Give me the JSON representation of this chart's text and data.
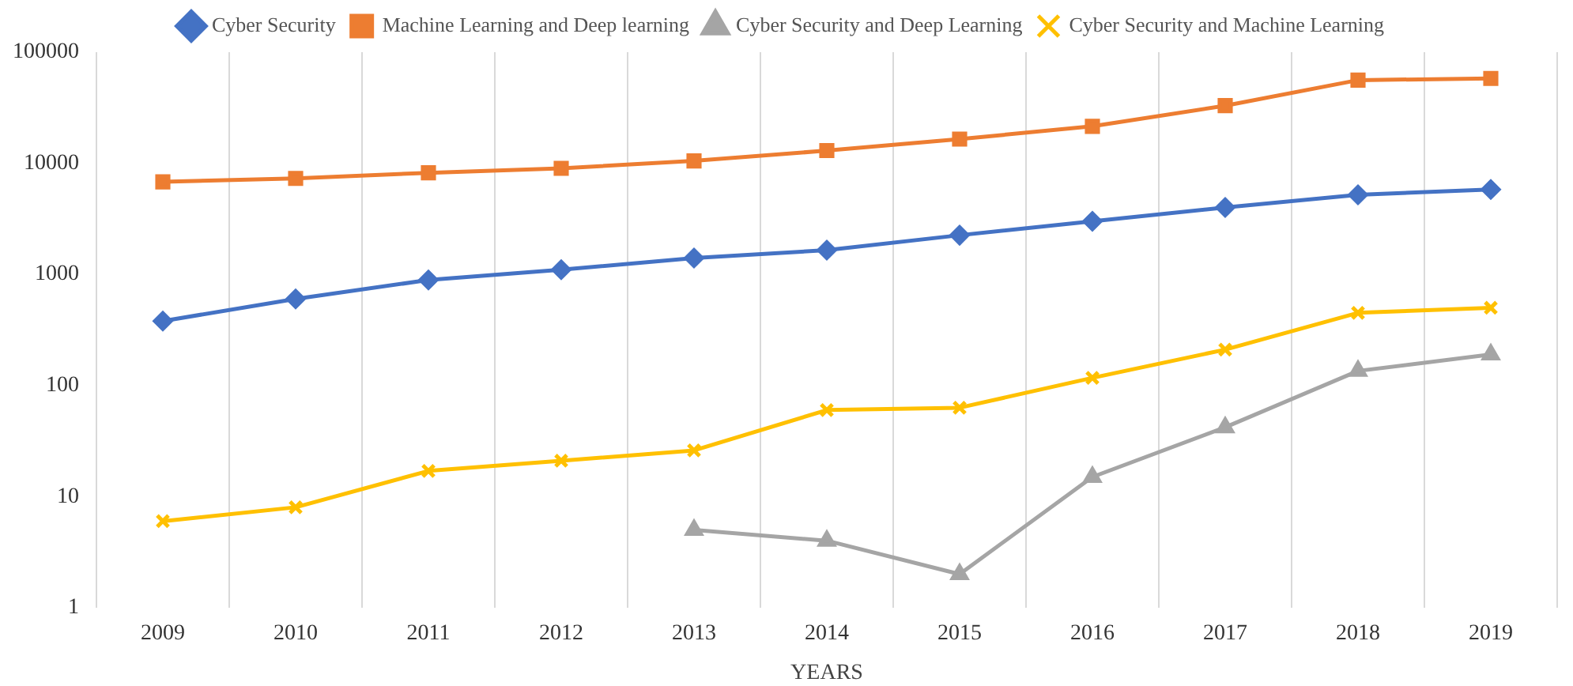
{
  "chart_data": {
    "type": "line",
    "xlabel": "YEARS",
    "categories": [
      "2009",
      "2010",
      "2011",
      "2012",
      "2013",
      "2014",
      "2015",
      "2016",
      "2017",
      "2018",
      "2019"
    ],
    "series": [
      {
        "name": "Cyber Security",
        "color": "#4472c4",
        "marker": "diamond",
        "values": [
          380,
          600,
          890,
          1100,
          1400,
          1650,
          2250,
          3000,
          4000,
          5200,
          5800
        ]
      },
      {
        "name": "Machine Learning and Deep learning",
        "color": "#ed7d31",
        "marker": "square",
        "values": [
          6800,
          7300,
          8200,
          9000,
          10500,
          13000,
          16500,
          21500,
          33000,
          56000,
          58000
        ]
      },
      {
        "name": "Cyber Security and Deep Learning",
        "color": "#a5a5a5",
        "marker": "triangle",
        "values": [
          null,
          null,
          null,
          null,
          5,
          4,
          2,
          15,
          42,
          135,
          190
        ]
      },
      {
        "name": "Cyber Security and Machine Learning",
        "color": "#ffc000",
        "marker": "cross",
        "values": [
          6,
          8,
          17,
          21,
          26,
          60,
          63,
          117,
          210,
          450,
          500
        ]
      }
    ],
    "log": "y",
    "ylim": [
      1,
      100000
    ],
    "yticks": [
      1,
      10,
      100,
      1000,
      10000,
      100000
    ],
    "grid": "x",
    "legend": "top"
  }
}
